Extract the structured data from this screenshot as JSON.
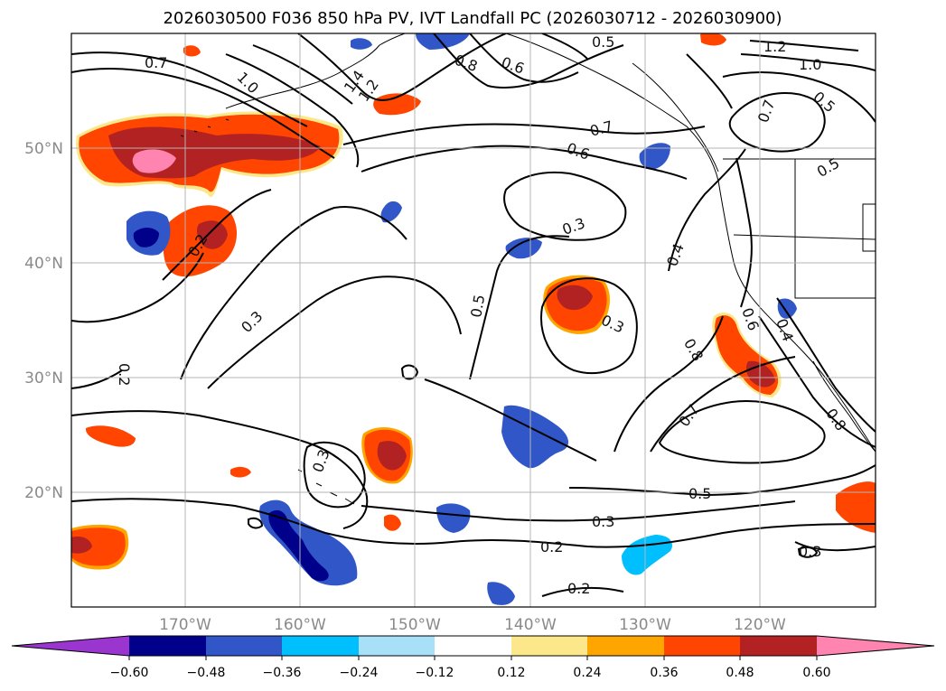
{
  "title": "2026030500 F036 850 hPa PV, IVT Landfall PC (2026030712 - 2026030900)",
  "lat_labels": [
    "20°N",
    "30°N",
    "40°N",
    "50°N"
  ],
  "lon_labels": [
    "170°W",
    "160°W",
    "150°W",
    "140°W",
    "130°W",
    "120°W"
  ],
  "colorbar": {
    "ticks": [
      "−0.60",
      "−0.48",
      "−0.36",
      "−0.24",
      "−0.12",
      "0.12",
      "0.24",
      "0.36",
      "0.48",
      "0.60"
    ],
    "colors": [
      "#9b35d0",
      "#00008b",
      "#3056c8",
      "#00bfff",
      "#a8e0f8",
      "#ffffff",
      "#fce88a",
      "#ffa500",
      "#ff4500",
      "#b22222",
      "#ff85b0"
    ]
  },
  "contour_labels": [
    "0.5",
    "0.8",
    "0.6",
    "1.2",
    "1.0",
    "0.7",
    "0.5",
    "0.7",
    "0.6",
    "0.3",
    "0.4",
    "0.5",
    "0.3",
    "0.6",
    "0.8",
    "0.7",
    "0.5",
    "0.3",
    "0.2",
    "0.2",
    "0.3",
    "0.8",
    "0.4",
    "0.2",
    "0.3",
    "0.2",
    "1.0",
    "1.4",
    "1.2",
    "0.7",
    "0.5",
    "0.3"
  ],
  "map": {
    "lat_range": [
      10,
      60
    ],
    "lon_range": [
      -180,
      -110
    ],
    "pv_fields": {
      "positive_anomaly_colors": [
        "#fce88a",
        "#ffa500",
        "#ff4500",
        "#b22222",
        "#ff85b0"
      ],
      "negative_anomaly_colors": [
        "#a8e0f8",
        "#00bfff",
        "#3056c8",
        "#00008b"
      ]
    }
  }
}
